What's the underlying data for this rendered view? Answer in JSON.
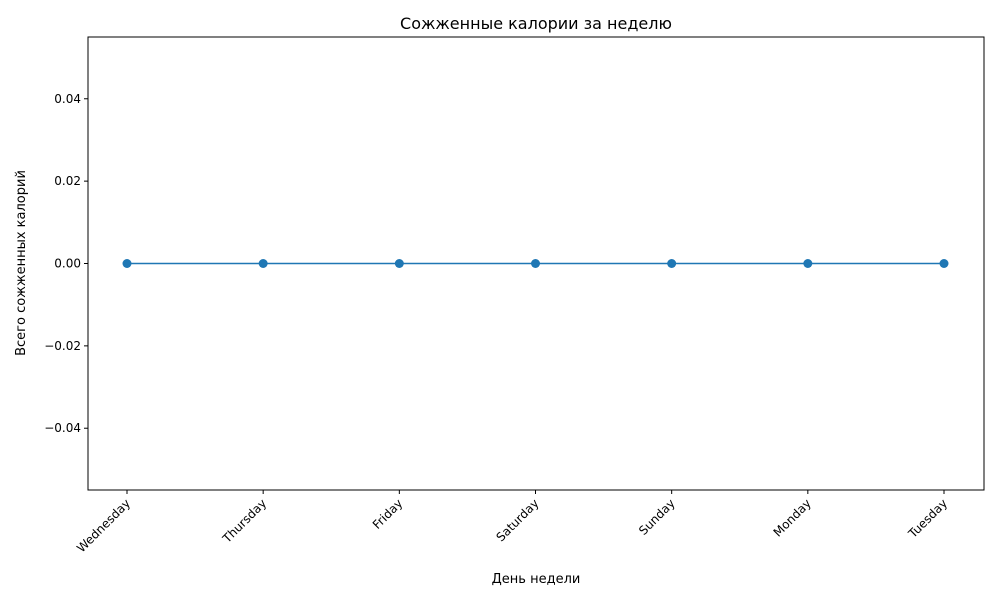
{
  "chart_data": {
    "type": "line",
    "title": "Сожженные калории за неделю",
    "xlabel": "День недели",
    "ylabel": "Всего сожженных калорий",
    "categories": [
      "Wednesday",
      "Thursday",
      "Friday",
      "Saturday",
      "Sunday",
      "Monday",
      "Tuesday"
    ],
    "series": [
      {
        "values": [
          0,
          0,
          0,
          0,
          0,
          0,
          0
        ]
      }
    ],
    "ylim": [
      -0.055,
      0.055
    ],
    "yticks": [
      -0.04,
      -0.02,
      0.0,
      0.02,
      0.04
    ],
    "ytick_labels": [
      "−0.04",
      "−0.02",
      "0.00",
      "0.02",
      "0.04"
    ],
    "grid": false,
    "markers": true,
    "x_tick_rotation": "45 degrees",
    "colors": {
      "line": "#1f77b4",
      "axes": "#000000"
    }
  }
}
